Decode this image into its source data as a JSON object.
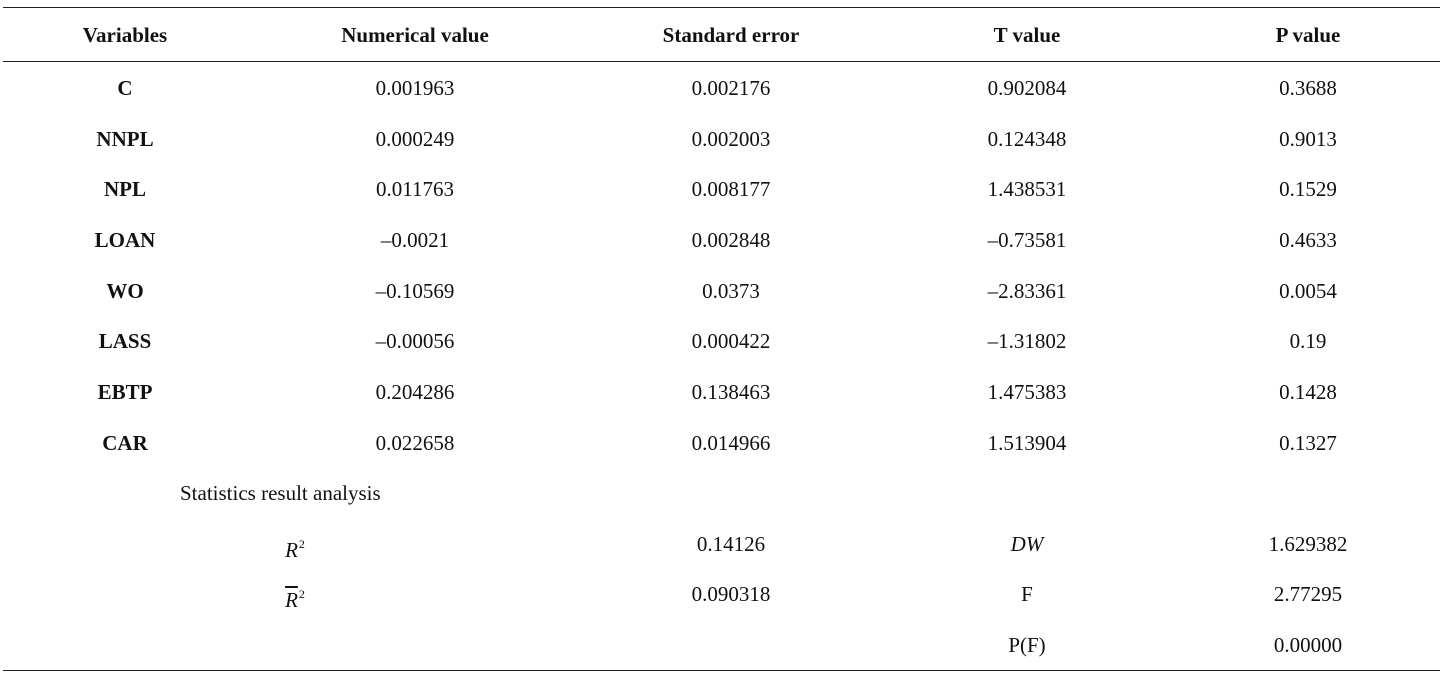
{
  "table": {
    "headers": [
      "Variables",
      "Numerical value",
      "Standard error",
      "T value",
      "P value"
    ],
    "rows": [
      {
        "variable": "C",
        "value": "0.001963",
        "se": "0.002176",
        "t": "0.902084",
        "p": "0.3688"
      },
      {
        "variable": "NNPL",
        "value": "0.000249",
        "se": "0.002003",
        "t": "0.124348",
        "p": "0.9013"
      },
      {
        "variable": "NPL",
        "value": "0.011763",
        "se": "0.008177",
        "t": "1.438531",
        "p": "0.1529"
      },
      {
        "variable": "LOAN",
        "value": "–0.0021",
        "se": "0.002848",
        "t": "–0.73581",
        "p": "0.4633"
      },
      {
        "variable": "WO",
        "value": "–0.10569",
        "se": "0.0373",
        "t": "–2.83361",
        "p": "0.0054"
      },
      {
        "variable": "LASS",
        "value": "–0.00056",
        "se": "0.000422",
        "t": "–1.31802",
        "p": "0.19"
      },
      {
        "variable": "EBTP",
        "value": "0.204286",
        "se": "0.138463",
        "t": "1.475383",
        "p": "0.1428"
      },
      {
        "variable": "CAR",
        "value": "0.022658",
        "se": "0.014966",
        "t": "1.513904",
        "p": "0.1327"
      }
    ]
  },
  "stats": {
    "title": "Statistics result analysis",
    "r2_symbol": "R",
    "r2_sup": "2",
    "r2_value": "0.14126",
    "adj_r2_symbol": "R",
    "adj_r2_sup": "2",
    "adj_r2_value": "0.090318",
    "dw_label": "DW",
    "dw_value": "1.629382",
    "f_label": "F",
    "f_value": "2.77295",
    "pf_label": "P(F)",
    "pf_value": "0.00000"
  }
}
